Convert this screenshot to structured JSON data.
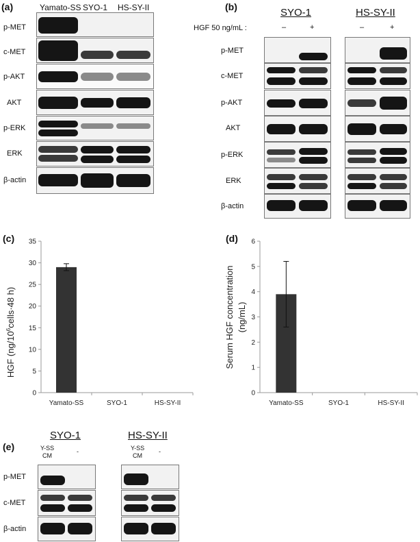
{
  "panel_a": {
    "label": "(a)",
    "columns": [
      "Yamato-SS",
      "SYO-1",
      "HS-SY-II"
    ],
    "rows": [
      "p-MET",
      "c-MET",
      "p-AKT",
      "AKT",
      "p-ERK",
      "ERK",
      "β-actin"
    ]
  },
  "panel_b": {
    "label": "(b)",
    "groups": [
      "SYO-1",
      "HS-SY-II"
    ],
    "treatment": "HGF 50 ng/mL :",
    "signs": [
      "–",
      "+",
      "–",
      "+"
    ],
    "rows": [
      "p-MET",
      "c-MET",
      "p-AKT",
      "AKT",
      "p-ERK",
      "ERK",
      "β-actin"
    ]
  },
  "panel_e": {
    "label": "(e)",
    "groups": [
      "SYO-1",
      "HS-SY-II"
    ],
    "lane_label_top": "Y-SS",
    "lane_label_bottom": "CM",
    "minus": "-",
    "rows": [
      "p-MET",
      "c-MET",
      "β-actin"
    ]
  },
  "chart_data": [
    {
      "panel": "(c)",
      "type": "bar",
      "categories": [
        "Yamato-SS",
        "SYO-1",
        "HS-SY-II"
      ],
      "values": [
        29,
        0,
        0
      ],
      "error": [
        0.8,
        0,
        0
      ],
      "ylabel_prefix": "HGF (ng/10",
      "ylabel_sup": "6",
      "ylabel_suffix": "cells·48 h)",
      "ylim": [
        0,
        35
      ],
      "yticks": [
        "0",
        "5",
        "10",
        "15",
        "20",
        "25",
        "30",
        "35"
      ]
    },
    {
      "panel": "(d)",
      "type": "bar",
      "categories": [
        "Yamato-SS",
        "SYO-1",
        "HS-SY-II"
      ],
      "values": [
        3.9,
        0,
        0
      ],
      "error": [
        1.3,
        0,
        0
      ],
      "ylabel_line1": "Serum HGF concentration",
      "ylabel_line2": "(ng/mL)",
      "ylim": [
        0,
        6
      ],
      "yticks": [
        "0",
        "1",
        "2",
        "3",
        "4",
        "5",
        "6"
      ]
    }
  ]
}
